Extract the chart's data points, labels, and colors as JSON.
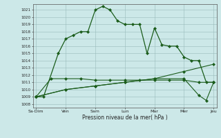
{
  "background_color": "#cce8e8",
  "grid_color": "#99bbbb",
  "line_color": "#1a5c1a",
  "x_labels": [
    "Sa·Dim",
    "Ven",
    "Sam",
    "Lun",
    "Mar",
    "Mer",
    "Jeu"
  ],
  "x_ticks": [
    0,
    2,
    4,
    6,
    8,
    10,
    12
  ],
  "ylim": [
    1007.5,
    1021.8
  ],
  "yticks": [
    1008,
    1009,
    1010,
    1011,
    1012,
    1013,
    1014,
    1015,
    1016,
    1017,
    1018,
    1019,
    1020,
    1021
  ],
  "xlabel": "Pression niveau de la mer( hPa )",
  "series": {
    "upper": {
      "x": [
        0,
        0.5,
        1.5,
        2,
        2.5,
        3,
        3.5,
        4,
        4.5,
        5,
        5.5,
        6,
        6.5,
        7,
        7.5,
        8,
        8.5,
        9,
        9.5,
        10,
        10.5,
        11,
        11.5,
        12
      ],
      "y": [
        1009,
        1009,
        1015,
        1017,
        1017.5,
        1018,
        1018,
        1021,
        1021.5,
        1021,
        1019.5,
        1019,
        1019,
        1019,
        1015,
        1018.5,
        1016.2,
        1016,
        1016,
        1014.5,
        1014,
        1014,
        1011,
        1011
      ]
    },
    "mid_flat": {
      "x": [
        0,
        1,
        2,
        3,
        4,
        5,
        6,
        7,
        8,
        9,
        10,
        11,
        12
      ],
      "y": [
        1009,
        1011.5,
        1011.5,
        1011.5,
        1011.3,
        1011.3,
        1011.3,
        1011.3,
        1011.3,
        1011.3,
        1011.3,
        1011.0,
        1011.0
      ]
    },
    "mid_rise": {
      "x": [
        0,
        2,
        4,
        6,
        8,
        10,
        12
      ],
      "y": [
        1009.0,
        1010.0,
        1010.5,
        1011.0,
        1011.5,
        1012.5,
        1013.5
      ]
    },
    "lower": {
      "x": [
        0,
        2,
        4,
        6,
        8,
        10,
        11,
        11.5,
        12
      ],
      "y": [
        1009,
        1010.0,
        1010.5,
        1011.0,
        1011.5,
        1011.5,
        1009.2,
        1008.5,
        1011.0
      ]
    }
  }
}
